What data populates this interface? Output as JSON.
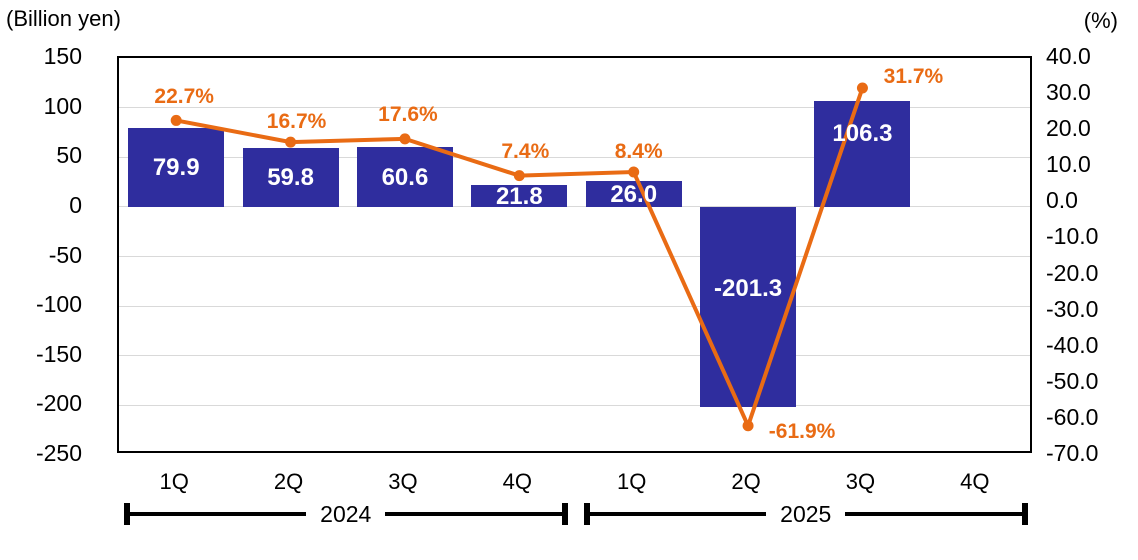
{
  "chart_data": {
    "type": "bar",
    "combo": "bar+line",
    "title": "",
    "left_axis": {
      "title": "(Billion yen)",
      "max": 150,
      "min": -250,
      "step": 50,
      "ticks": [
        "150",
        "100",
        "50",
        "0",
        "-50",
        "-100",
        "-150",
        "-200",
        "-250"
      ]
    },
    "right_axis": {
      "title": "(%)",
      "max": 40,
      "min": -70,
      "step": 10,
      "ticks": [
        "40.0",
        "30.0",
        "20.0",
        "10.0",
        "0.0",
        "-10.0",
        "-20.0",
        "-30.0",
        "-40.0",
        "-50.0",
        "-60.0",
        "-70.0"
      ]
    },
    "grid": true,
    "legend": "none",
    "categories": [
      "1Q",
      "2Q",
      "3Q",
      "4Q",
      "1Q",
      "2Q",
      "3Q",
      "4Q"
    ],
    "year_groups": [
      {
        "label": "2024",
        "start": 0,
        "end": 3
      },
      {
        "label": "2025",
        "start": 4,
        "end": 7
      }
    ],
    "series": [
      {
        "name": "bar-billion-yen",
        "type": "bar",
        "axis": "left",
        "color": "#2f2d9e",
        "label_color": "#ffffff",
        "values": [
          79.9,
          59.8,
          60.6,
          21.8,
          26.0,
          -201.3,
          106.3,
          null
        ],
        "data_labels": [
          "79.9",
          "59.8",
          "60.6",
          "21.8",
          "26.0",
          "-201.3",
          "106.3",
          ""
        ]
      },
      {
        "name": "line-percent",
        "type": "line",
        "axis": "right",
        "color": "#e96b14",
        "label_color": "#e96b14",
        "values": [
          22.7,
          16.7,
          17.6,
          7.4,
          8.4,
          -61.9,
          31.7,
          null
        ],
        "data_labels": [
          "22.7%",
          "16.7%",
          "17.6%",
          "7.4%",
          "8.4%",
          "-61.9%",
          "31.7%",
          ""
        ]
      }
    ]
  }
}
